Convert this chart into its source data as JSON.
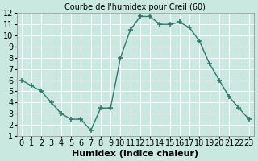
{
  "x": [
    0,
    1,
    2,
    3,
    4,
    5,
    6,
    7,
    8,
    9,
    10,
    11,
    12,
    13,
    14,
    15,
    16,
    17,
    18,
    19,
    20,
    21,
    22,
    23
  ],
  "y": [
    6,
    5.5,
    5,
    4,
    3,
    2.5,
    2.5,
    1.5,
    3.5,
    3.5,
    8,
    10.5,
    11.7,
    11.7,
    11,
    11,
    11.2,
    10.7,
    9.5,
    7.5,
    6,
    4.5,
    3.5,
    2.5
  ],
  "line_color": "#2d7a6e",
  "marker": "+",
  "marker_size": 5,
  "bg_color": "#c8e8e0",
  "grid_color": "#ffffff",
  "xlim": [
    -0.5,
    23.5
  ],
  "ylim": [
    1,
    12
  ],
  "xticks": [
    0,
    1,
    2,
    3,
    4,
    5,
    6,
    7,
    8,
    9,
    10,
    11,
    12,
    13,
    14,
    15,
    16,
    17,
    18,
    19,
    20,
    21,
    22,
    23
  ],
  "yticks": [
    1,
    2,
    3,
    4,
    5,
    6,
    7,
    8,
    9,
    10,
    11,
    12
  ],
  "xlabel": "Humidex (Indice chaleur)",
  "xlabel_fontsize": 8,
  "tick_fontsize": 7,
  "title": "Courbe de l'humidex pour Creil (60)",
  "title_fontsize": 7
}
